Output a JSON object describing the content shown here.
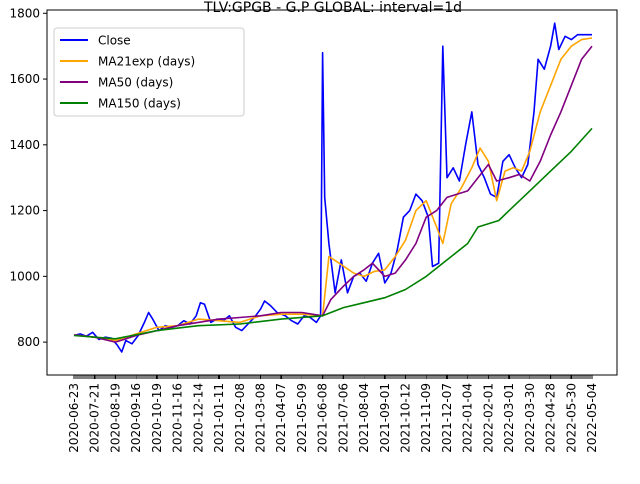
{
  "chart_data": {
    "type": "line",
    "title": "TLV:GPGB - G.P GLOBAL: interval=1d",
    "xlabel": "",
    "ylabel": "",
    "x_tick_labels": [
      "2020-06-23",
      "2020-07-21",
      "2020-08-19",
      "2020-09-16",
      "2020-10-19",
      "2020-11-16",
      "2020-12-14",
      "2021-01-11",
      "2021-02-08",
      "2021-03-08",
      "2021-04-07",
      "2021-05-09",
      "2021-06-08",
      "2021-07-06",
      "2021-08-04",
      "2021-09-01",
      "2021-10-12",
      "2021-11-09",
      "2021-12-07",
      "2022-01-04",
      "2022-02-01",
      "2022-03-01",
      "2022-03-30",
      "2022-04-28",
      "2022-05-30",
      "2022-05-04"
    ],
    "y_ticks": [
      800,
      1000,
      1200,
      1400,
      1600,
      1800
    ],
    "ylim": [
      700,
      1810
    ],
    "grid": false,
    "legend_position": "top-left",
    "series": [
      {
        "name": "Close",
        "color": "#0000ff",
        "points": [
          [
            0,
            820
          ],
          [
            0.3,
            825
          ],
          [
            0.6,
            818
          ],
          [
            0.9,
            830
          ],
          [
            1.2,
            808
          ],
          [
            1.5,
            815
          ],
          [
            1.8,
            812
          ],
          [
            2.1,
            790
          ],
          [
            2.3,
            770
          ],
          [
            2.5,
            805
          ],
          [
            2.8,
            795
          ],
          [
            3.1,
            820
          ],
          [
            3.4,
            860
          ],
          [
            3.6,
            890
          ],
          [
            3.8,
            870
          ],
          [
            4.1,
            835
          ],
          [
            4.4,
            850
          ],
          [
            4.7,
            845
          ],
          [
            5.0,
            850
          ],
          [
            5.3,
            865
          ],
          [
            5.6,
            855
          ],
          [
            5.9,
            880
          ],
          [
            6.1,
            920
          ],
          [
            6.3,
            915
          ],
          [
            6.6,
            860
          ],
          [
            6.9,
            870
          ],
          [
            7.2,
            865
          ],
          [
            7.5,
            880
          ],
          [
            7.8,
            845
          ],
          [
            8.1,
            835
          ],
          [
            8.4,
            855
          ],
          [
            8.7,
            875
          ],
          [
            9.0,
            900
          ],
          [
            9.2,
            925
          ],
          [
            9.5,
            910
          ],
          [
            9.8,
            890
          ],
          [
            10.2,
            880
          ],
          [
            10.5,
            865
          ],
          [
            10.8,
            855
          ],
          [
            11.1,
            880
          ],
          [
            11.4,
            875
          ],
          [
            11.7,
            860
          ],
          [
            11.9,
            880
          ],
          [
            12.0,
            1680
          ],
          [
            12.1,
            1240
          ],
          [
            12.3,
            1100
          ],
          [
            12.6,
            950
          ],
          [
            12.9,
            1050
          ],
          [
            13.2,
            950
          ],
          [
            13.5,
            1000
          ],
          [
            13.8,
            1010
          ],
          [
            14.1,
            985
          ],
          [
            14.4,
            1040
          ],
          [
            14.7,
            1070
          ],
          [
            15.0,
            980
          ],
          [
            15.3,
            1010
          ],
          [
            15.6,
            1080
          ],
          [
            15.9,
            1180
          ],
          [
            16.2,
            1200
          ],
          [
            16.5,
            1250
          ],
          [
            16.8,
            1230
          ],
          [
            17.1,
            1180
          ],
          [
            17.3,
            1030
          ],
          [
            17.6,
            1040
          ],
          [
            17.8,
            1700
          ],
          [
            18.0,
            1300
          ],
          [
            18.3,
            1330
          ],
          [
            18.6,
            1290
          ],
          [
            18.9,
            1400
          ],
          [
            19.2,
            1500
          ],
          [
            19.5,
            1340
          ],
          [
            19.8,
            1300
          ],
          [
            20.1,
            1250
          ],
          [
            20.4,
            1240
          ],
          [
            20.7,
            1350
          ],
          [
            21.0,
            1370
          ],
          [
            21.3,
            1330
          ],
          [
            21.6,
            1300
          ],
          [
            21.9,
            1340
          ],
          [
            22.2,
            1500
          ],
          [
            22.4,
            1660
          ],
          [
            22.7,
            1630
          ],
          [
            23.0,
            1700
          ],
          [
            23.2,
            1770
          ],
          [
            23.4,
            1690
          ],
          [
            23.7,
            1730
          ],
          [
            24.0,
            1720
          ],
          [
            24.3,
            1735
          ],
          [
            25.0,
            1735
          ]
        ]
      },
      {
        "name": "MA21exp (days)",
        "color": "#ffa500",
        "points": [
          [
            0,
            822
          ],
          [
            1,
            815
          ],
          [
            2,
            805
          ],
          [
            3,
            825
          ],
          [
            4,
            845
          ],
          [
            5,
            850
          ],
          [
            6,
            870
          ],
          [
            7,
            865
          ],
          [
            8,
            860
          ],
          [
            9,
            880
          ],
          [
            10,
            885
          ],
          [
            11,
            885
          ],
          [
            12,
            880
          ],
          [
            12.3,
            1060
          ],
          [
            12.8,
            1040
          ],
          [
            13.5,
            1010
          ],
          [
            14,
            1000
          ],
          [
            14.5,
            1015
          ],
          [
            15,
            1020
          ],
          [
            15.5,
            1060
          ],
          [
            16,
            1110
          ],
          [
            16.5,
            1200
          ],
          [
            17,
            1230
          ],
          [
            17.5,
            1150
          ],
          [
            17.8,
            1100
          ],
          [
            18.2,
            1220
          ],
          [
            18.7,
            1270
          ],
          [
            19.2,
            1330
          ],
          [
            19.6,
            1390
          ],
          [
            20,
            1350
          ],
          [
            20.4,
            1230
          ],
          [
            20.8,
            1320
          ],
          [
            21.2,
            1330
          ],
          [
            21.6,
            1320
          ],
          [
            22,
            1380
          ],
          [
            22.5,
            1500
          ],
          [
            23,
            1580
          ],
          [
            23.5,
            1660
          ],
          [
            24,
            1700
          ],
          [
            24.5,
            1720
          ],
          [
            25,
            1725
          ]
        ]
      },
      {
        "name": "MA50 (days)",
        "color": "#800080",
        "points": [
          [
            0,
            822
          ],
          [
            1,
            815
          ],
          [
            2,
            800
          ],
          [
            3,
            820
          ],
          [
            4,
            835
          ],
          [
            5,
            850
          ],
          [
            6,
            860
          ],
          [
            7,
            870
          ],
          [
            8,
            875
          ],
          [
            9,
            880
          ],
          [
            10,
            890
          ],
          [
            11,
            890
          ],
          [
            12,
            880
          ],
          [
            12.4,
            930
          ],
          [
            13,
            970
          ],
          [
            13.5,
            1000
          ],
          [
            14,
            1020
          ],
          [
            14.4,
            1040
          ],
          [
            15,
            1000
          ],
          [
            15.5,
            1010
          ],
          [
            16,
            1050
          ],
          [
            16.5,
            1100
          ],
          [
            17,
            1180
          ],
          [
            17.5,
            1200
          ],
          [
            18,
            1240
          ],
          [
            18.5,
            1250
          ],
          [
            19,
            1260
          ],
          [
            19.5,
            1300
          ],
          [
            20,
            1340
          ],
          [
            20.4,
            1290
          ],
          [
            21,
            1300
          ],
          [
            21.5,
            1310
          ],
          [
            22,
            1290
          ],
          [
            22.5,
            1350
          ],
          [
            23,
            1430
          ],
          [
            23.5,
            1500
          ],
          [
            24,
            1580
          ],
          [
            24.5,
            1660
          ],
          [
            25,
            1700
          ]
        ]
      },
      {
        "name": "MA150 (days)",
        "color": "#008000",
        "points": [
          [
            0,
            820
          ],
          [
            2,
            810
          ],
          [
            4,
            835
          ],
          [
            6,
            850
          ],
          [
            8,
            855
          ],
          [
            10,
            870
          ],
          [
            12,
            880
          ],
          [
            13,
            905
          ],
          [
            14,
            920
          ],
          [
            15,
            935
          ],
          [
            16,
            960
          ],
          [
            17,
            1000
          ],
          [
            18,
            1050
          ],
          [
            19,
            1100
          ],
          [
            19.5,
            1150
          ],
          [
            20.5,
            1170
          ],
          [
            21,
            1200
          ],
          [
            22,
            1260
          ],
          [
            23,
            1320
          ],
          [
            24,
            1380
          ],
          [
            25,
            1450
          ]
        ]
      }
    ]
  }
}
